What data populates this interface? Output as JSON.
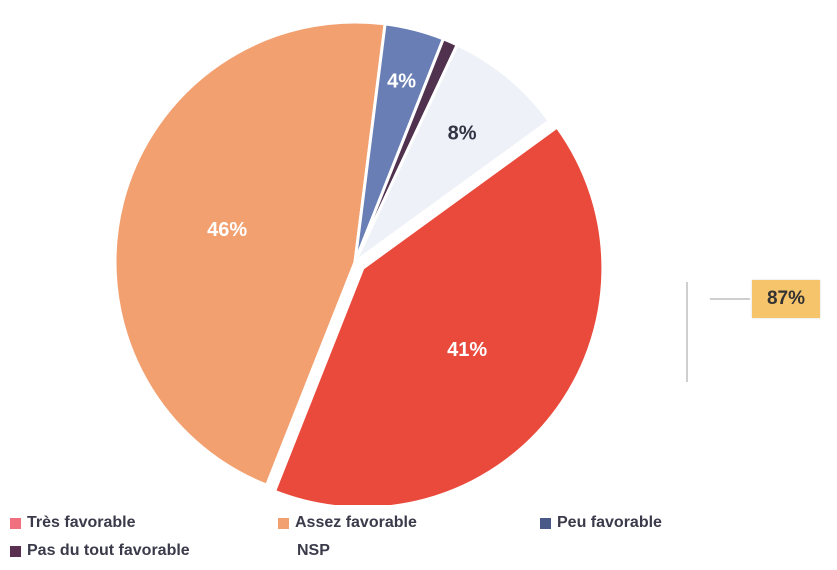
{
  "chart_data": {
    "type": "pie",
    "slices": [
      {
        "label": "Très favorable",
        "value": 41,
        "display": "41%",
        "color": "#ea4a3c",
        "text_color": "#ffffff"
      },
      {
        "label": "Assez favorable",
        "value": 46,
        "display": "46%",
        "color": "#f2a070",
        "text_color": "#ffffff"
      },
      {
        "label": "Peu favorable",
        "value": 4,
        "display": "4%",
        "color": "#6a7eb6",
        "text_color": "#ffffff"
      },
      {
        "label": "Pas du tout favorable",
        "value": 1,
        "display": "",
        "color": "#50314e",
        "text_color": "#ffffff"
      },
      {
        "label": "NSP",
        "value": 8,
        "display": "8%",
        "color": "#eef2f8",
        "text_color": "#333344"
      }
    ],
    "legend": [
      {
        "label": "Très favorable",
        "color": "#f07080"
      },
      {
        "label": "Assez favorable",
        "color": "#f2a070"
      },
      {
        "label": "Peu favorable",
        "color": "#4a5a88"
      },
      {
        "label": "Pas du tout favorable",
        "color": "#5a3050"
      },
      {
        "label": "NSP",
        "color": ""
      }
    ],
    "annotation": {
      "text": "87%",
      "color": "#f6c46a"
    }
  }
}
